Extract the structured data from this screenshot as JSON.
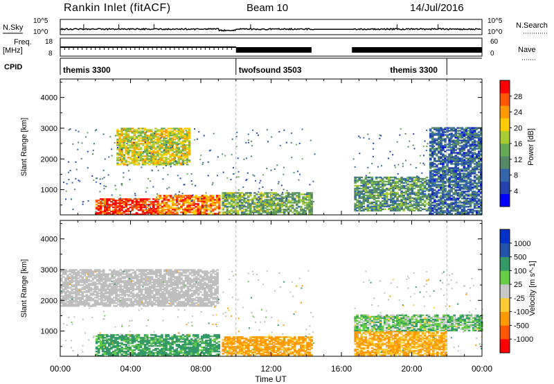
{
  "header": {
    "station": "Rankin Inlet (fitACF)",
    "beam": "Beam 10",
    "date": "14/Jul/2016"
  },
  "top_panels": {
    "nsky_label": "N.Sky",
    "nsky_ticks": [
      "10^5",
      "10^0"
    ],
    "nsearch_label": "N.Search",
    "nsearch_ticks": [
      "10^5",
      "10^0"
    ],
    "freq_label_1": "Freq.",
    "freq_label_2": "[MHz]",
    "freq_ticks": [
      "18",
      "8"
    ],
    "nave_label": "Nave",
    "nave_ticks": [
      "60",
      "0"
    ],
    "cpid_label": "CPID"
  },
  "cpid_segments": [
    {
      "name": "themis 3300",
      "start": 0,
      "end": 10
    },
    {
      "name": "twofsound 3503",
      "start": 10,
      "end": 22
    },
    {
      "name": "themis 3300",
      "start": 22,
      "end": 24
    }
  ],
  "colors": {
    "power_scale": [
      "#0000ff",
      "#2244aa",
      "#3366aa",
      "#558866",
      "#66aa55",
      "#aacc33",
      "#ffcc00",
      "#ff9900",
      "#ff5500",
      "#ff0000"
    ],
    "velocity_scale": [
      "#ff0000",
      "#ff5500",
      "#ff9900",
      "#ffcc33",
      "#c8c8c8",
      "#66cc44",
      "#339966",
      "#2255aa",
      "#0033cc"
    ],
    "ground_scatter": "#bebebe"
  },
  "chart_data": [
    {
      "type": "heatmap",
      "panel": "power",
      "ylabel": "Slant Range [km]",
      "yticks": [
        "4000",
        "3000",
        "2000",
        "1000"
      ],
      "ylim": [
        180,
        4600
      ],
      "xlim": [
        0,
        24
      ],
      "colorbar_label": "Power [dB]",
      "colorbar_ticks": [
        "28",
        "24",
        "20",
        "16",
        "12",
        "8",
        "4"
      ],
      "data_gaps": [
        [
          14.5,
          16.6
        ]
      ],
      "regions": [
        {
          "t": [
            2.0,
            5.5
          ],
          "r": [
            180,
            700
          ],
          "power_db": 28
        },
        {
          "t": [
            5.5,
            9.0
          ],
          "r": [
            200,
            800
          ],
          "power_db": 24
        },
        {
          "t": [
            3.2,
            7.3
          ],
          "r": [
            1800,
            3000
          ],
          "power_db": 18
        },
        {
          "t": [
            9.2,
            14.3
          ],
          "r": [
            200,
            900
          ],
          "power_db": 14
        },
        {
          "t": [
            16.6,
            21.0
          ],
          "r": [
            300,
            1400
          ],
          "power_db": 12
        },
        {
          "t": [
            21.0,
            24.0
          ],
          "r": [
            200,
            3000
          ],
          "power_db": 8
        }
      ]
    },
    {
      "type": "heatmap",
      "panel": "velocity",
      "ylabel": "Slant Range [km]",
      "yticks": [
        "4000",
        "3000",
        "2000",
        "1000"
      ],
      "xlabel": "Time UT",
      "xticks": [
        "00:00",
        "04:00",
        "08:00",
        "12:00",
        "16:00",
        "20:00",
        "00:00"
      ],
      "ylim": [
        180,
        4600
      ],
      "xlim": [
        0,
        24
      ],
      "colorbar_label": "Velocity [m s^-1]",
      "colorbar_ticks": [
        "1000",
        "500",
        "100",
        "25",
        "-25",
        "-100",
        "-500",
        "-1000"
      ],
      "data_gaps": [
        [
          14.5,
          16.6
        ]
      ],
      "regions": [
        {
          "t": [
            0.0,
            9.0
          ],
          "r": [
            1800,
            3000
          ],
          "velocity": 0
        },
        {
          "t": [
            2.0,
            9.0
          ],
          "r": [
            180,
            900
          ],
          "velocity": 150
        },
        {
          "t": [
            9.2,
            14.3
          ],
          "r": [
            200,
            800
          ],
          "velocity": -150
        },
        {
          "t": [
            16.6,
            22.0
          ],
          "r": [
            200,
            1000
          ],
          "velocity": -120
        },
        {
          "t": [
            16.6,
            24.0
          ],
          "r": [
            1000,
            1500
          ],
          "velocity": 60
        }
      ]
    }
  ]
}
